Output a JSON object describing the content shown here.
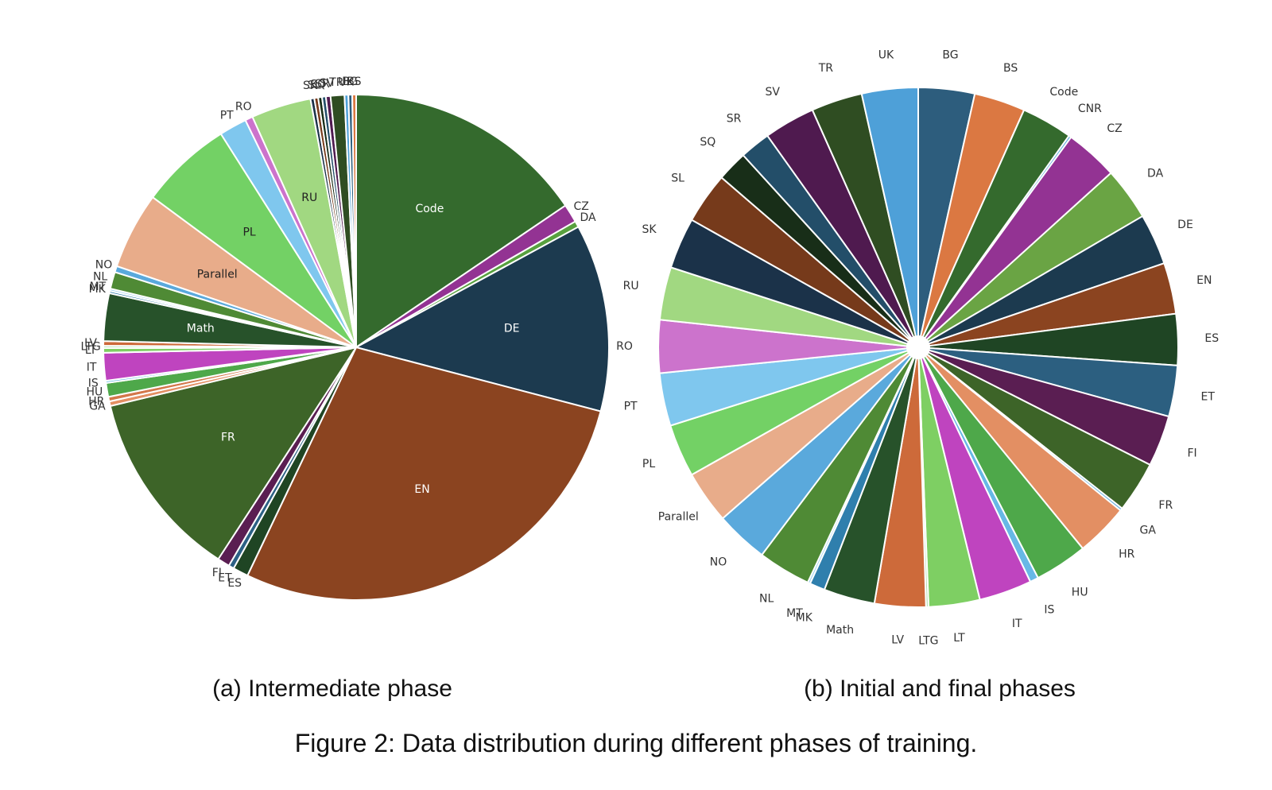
{
  "figure": {
    "caption": "Figure 2: Data distribution during different phases of training."
  },
  "chart_data": [
    {
      "type": "pie",
      "subtitle": "(a) Intermediate phase",
      "unit": "share of training data (%, estimated)",
      "slices": [
        {
          "label": "Code",
          "value": 15.8,
          "color": "#346a2d"
        },
        {
          "label": "CZ",
          "value": 1.2,
          "color": "#933393"
        },
        {
          "label": "DA",
          "value": 0.4,
          "color": "#58a13f"
        },
        {
          "label": "DE",
          "value": 12.2,
          "color": "#1c3a4f"
        },
        {
          "label": "EN",
          "value": 28.5,
          "color": "#8b4420"
        },
        {
          "label": "ES",
          "value": 1.0,
          "color": "#1f4524"
        },
        {
          "label": "ET",
          "value": 0.35,
          "color": "#2c6185"
        },
        {
          "label": "FI",
          "value": 0.8,
          "color": "#5a1e52"
        },
        {
          "label": "FR",
          "value": 12.3,
          "color": "#3d6428"
        },
        {
          "label": "GA",
          "value": 0.3,
          "color": "#e38f63"
        },
        {
          "label": "HR",
          "value": 0.3,
          "color": "#d3774a"
        },
        {
          "label": "HU",
          "value": 0.9,
          "color": "#4ea84a"
        },
        {
          "label": "IS",
          "value": 0.15,
          "color": "#67b8e6"
        },
        {
          "label": "IT",
          "value": 1.8,
          "color": "#bf44bf"
        },
        {
          "label": "LT",
          "value": 0.3,
          "color": "#7ecf63"
        },
        {
          "label": "LTG",
          "value": 0.15,
          "color": "#b7ddb5"
        },
        {
          "label": "LV",
          "value": 0.3,
          "color": "#cd6a3a"
        },
        {
          "label": "Math",
          "value": 3.1,
          "color": "#27522a"
        },
        {
          "label": "MK",
          "value": 0.15,
          "color": "#2f7fad"
        },
        {
          "label": "MT",
          "value": 0.15,
          "color": "#a3d4f1"
        },
        {
          "label": "NL",
          "value": 1.1,
          "color": "#4f8a35"
        },
        {
          "label": "NO",
          "value": 0.4,
          "color": "#5aa9dc"
        },
        {
          "label": "Parallel",
          "value": 5.0,
          "color": "#e8ac8a"
        },
        {
          "label": "PL",
          "value": 6.0,
          "color": "#73d165"
        },
        {
          "label": "PT",
          "value": 1.8,
          "color": "#7fc7ee"
        },
        {
          "label": "RO",
          "value": 0.5,
          "color": "#cc73cc"
        },
        {
          "label": "RU",
          "value": 3.9,
          "color": "#a1d881"
        },
        {
          "label": "SK",
          "value": 0.25,
          "color": "#1b3249"
        },
        {
          "label": "SL",
          "value": 0.25,
          "color": "#763a1b"
        },
        {
          "label": "SQ",
          "value": 0.25,
          "color": "#182e18"
        },
        {
          "label": "SR",
          "value": 0.25,
          "color": "#234e69"
        },
        {
          "label": "SV",
          "value": 0.3,
          "color": "#4f1a4f"
        },
        {
          "label": "TR",
          "value": 0.9,
          "color": "#2f4d22"
        },
        {
          "label": "UK",
          "value": 0.25,
          "color": "#4ea0d8"
        },
        {
          "label": "BG",
          "value": 0.25,
          "color": "#2d5d7d"
        },
        {
          "label": "BS",
          "value": 0.25,
          "color": "#db7842"
        }
      ]
    },
    {
      "type": "pie",
      "subtitle": "(b) Initial and final phases",
      "unit": "share of training data (%, estimated)",
      "slices": [
        {
          "label": "BG",
          "value": 3.3,
          "color": "#2d5d7d"
        },
        {
          "label": "BS",
          "value": 3.0,
          "color": "#db7842"
        },
        {
          "label": "Code",
          "value": 3.0,
          "color": "#346a2d"
        },
        {
          "label": "CNR",
          "value": 0.15,
          "color": "#5aa9dc"
        },
        {
          "label": "CZ",
          "value": 3.1,
          "color": "#933393"
        },
        {
          "label": "DA",
          "value": 3.1,
          "color": "#6aa444"
        },
        {
          "label": "DE",
          "value": 3.0,
          "color": "#1c3a4f"
        },
        {
          "label": "EN",
          "value": 3.0,
          "color": "#8b4420"
        },
        {
          "label": "ES",
          "value": 3.0,
          "color": "#1f4524"
        },
        {
          "label": "ET",
          "value": 3.0,
          "color": "#2c5f80"
        },
        {
          "label": "FI",
          "value": 3.0,
          "color": "#5a1e52"
        },
        {
          "label": "FR",
          "value": 3.0,
          "color": "#3d6428"
        },
        {
          "label": "GA",
          "value": 0.15,
          "color": "#5aa9dc"
        },
        {
          "label": "HR",
          "value": 3.1,
          "color": "#e38f63"
        },
        {
          "label": "HU",
          "value": 3.1,
          "color": "#4ea84a"
        },
        {
          "label": "IS",
          "value": 0.5,
          "color": "#67b8e6"
        },
        {
          "label": "IT",
          "value": 3.1,
          "color": "#bf44bf"
        },
        {
          "label": "LT",
          "value": 3.0,
          "color": "#7ecf63"
        },
        {
          "label": "LTG",
          "value": 0.15,
          "color": "#b7ddb5"
        },
        {
          "label": "LV",
          "value": 3.0,
          "color": "#cd6a3a"
        },
        {
          "label": "Math",
          "value": 3.0,
          "color": "#27522a"
        },
        {
          "label": "MK",
          "value": 0.9,
          "color": "#2f7fad"
        },
        {
          "label": "MT",
          "value": 0.15,
          "color": "#a3d4f1"
        },
        {
          "label": "NL",
          "value": 3.1,
          "color": "#4f8a35"
        },
        {
          "label": "NO",
          "value": 3.1,
          "color": "#5aa9dc"
        },
        {
          "label": "Parallel",
          "value": 3.1,
          "color": "#e8ac8a"
        },
        {
          "label": "PL",
          "value": 3.1,
          "color": "#73d165"
        },
        {
          "label": "PT",
          "value": 3.1,
          "color": "#7fc7ee"
        },
        {
          "label": "RO",
          "value": 3.1,
          "color": "#cc73cc"
        },
        {
          "label": "RU",
          "value": 3.1,
          "color": "#a1d881"
        },
        {
          "label": "SK",
          "value": 3.0,
          "color": "#1b3249"
        },
        {
          "label": "SL",
          "value": 3.0,
          "color": "#763a1b"
        },
        {
          "label": "SQ",
          "value": 1.8,
          "color": "#182e18"
        },
        {
          "label": "SR",
          "value": 1.8,
          "color": "#234e69"
        },
        {
          "label": "SV",
          "value": 3.0,
          "color": "#4f1a4f"
        },
        {
          "label": "TR",
          "value": 3.0,
          "color": "#2f4d22"
        },
        {
          "label": "UK",
          "value": 3.3,
          "color": "#4ea0d8"
        }
      ]
    }
  ]
}
